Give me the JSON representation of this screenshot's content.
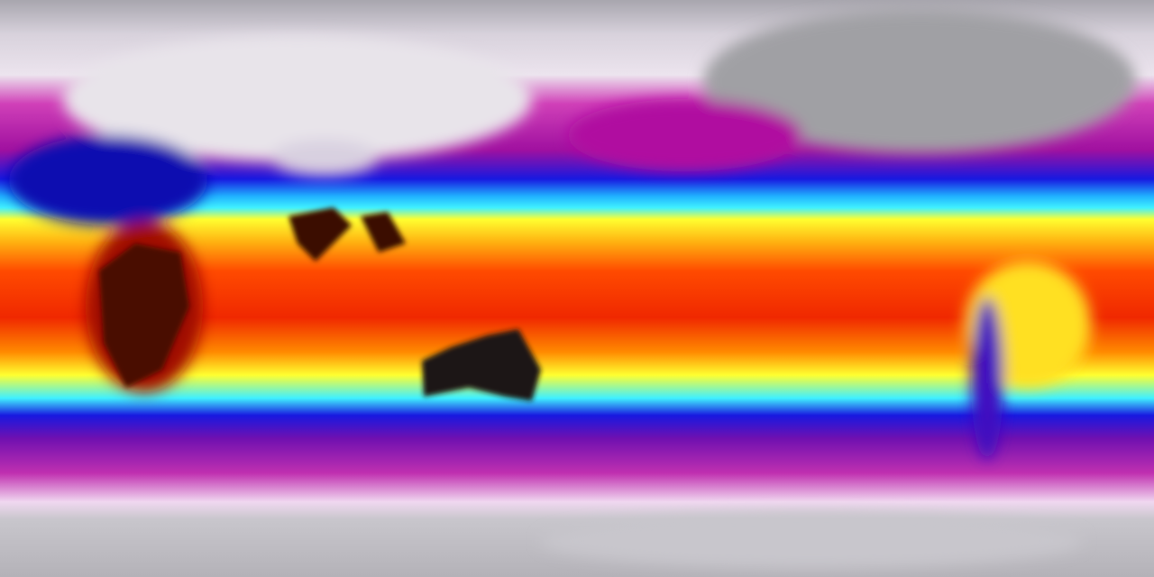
{
  "map": {
    "type": "global temperature field, equirectangular projection",
    "colormap": [
      "#9a98a0",
      "#e8e0ea",
      "#b020a0",
      "#1010e0",
      "#20e0ff",
      "#ffff20",
      "#ff9010",
      "#f02000",
      "#400000",
      "#1a1010"
    ],
    "colors": {
      "polar": "#b8b6bc",
      "cold": "#c020a8",
      "cool": "#1818e8",
      "mild": "#30e8ff",
      "warm": "#ffff20",
      "hot": "#ff3a00",
      "extreme": "#300808"
    }
  }
}
